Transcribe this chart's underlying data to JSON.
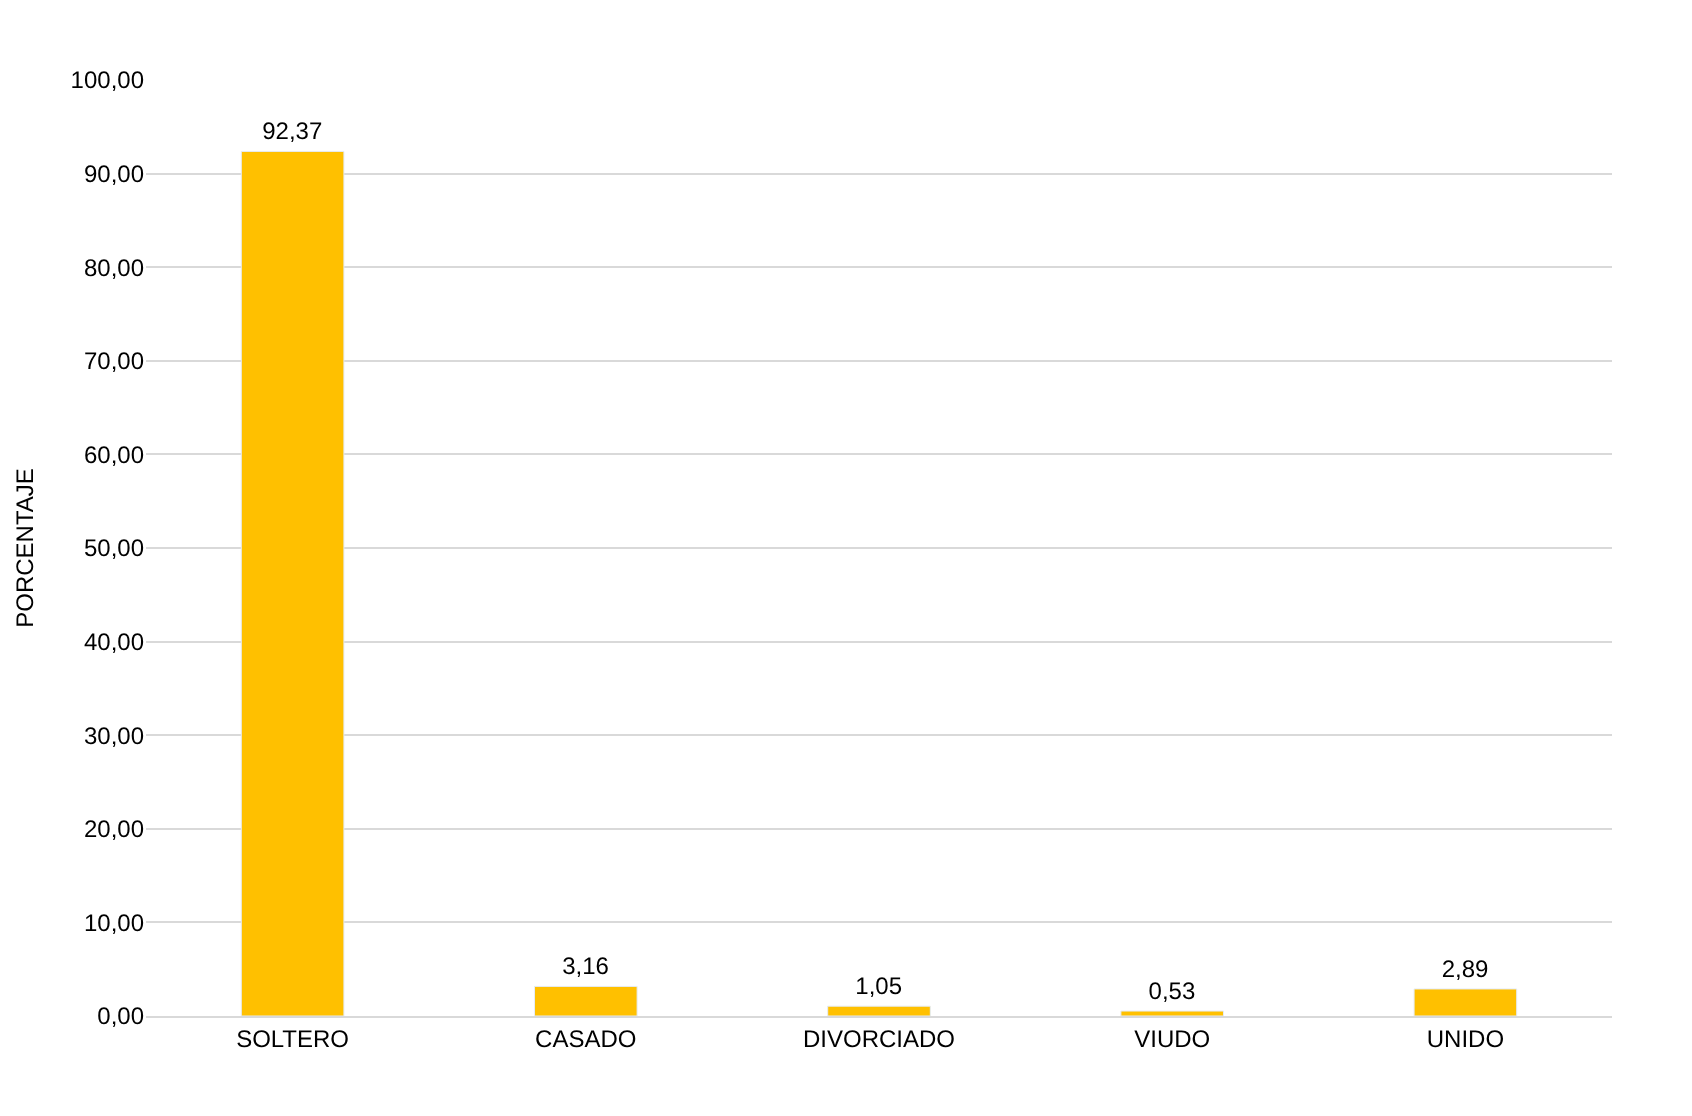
{
  "chart_data": {
    "type": "bar",
    "ylabel": "PORCENTAJE",
    "categories": [
      "SOLTERO",
      "CASADO",
      "DIVORCIADO",
      "VIUDO",
      "UNIDO"
    ],
    "values": [
      92.37,
      3.16,
      1.05,
      0.53,
      2.89
    ],
    "value_labels": [
      "92,37",
      "3,16",
      "1,05",
      "0,53",
      "2,89"
    ],
    "color": "#ffc000",
    "ylim": [
      0,
      100
    ],
    "yticks": [
      {
        "value": 0,
        "label": "0,00"
      },
      {
        "value": 10,
        "label": "10,00"
      },
      {
        "value": 20,
        "label": "20,00"
      },
      {
        "value": 30,
        "label": "30,00"
      },
      {
        "value": 40,
        "label": "40,00"
      },
      {
        "value": 50,
        "label": "50,00"
      },
      {
        "value": 60,
        "label": "60,00"
      },
      {
        "value": 70,
        "label": "70,00"
      },
      {
        "value": 80,
        "label": "80,00"
      },
      {
        "value": 90,
        "label": "90,00"
      },
      {
        "value": 100,
        "label": "100,00"
      }
    ],
    "grid": "y",
    "legend": false
  }
}
